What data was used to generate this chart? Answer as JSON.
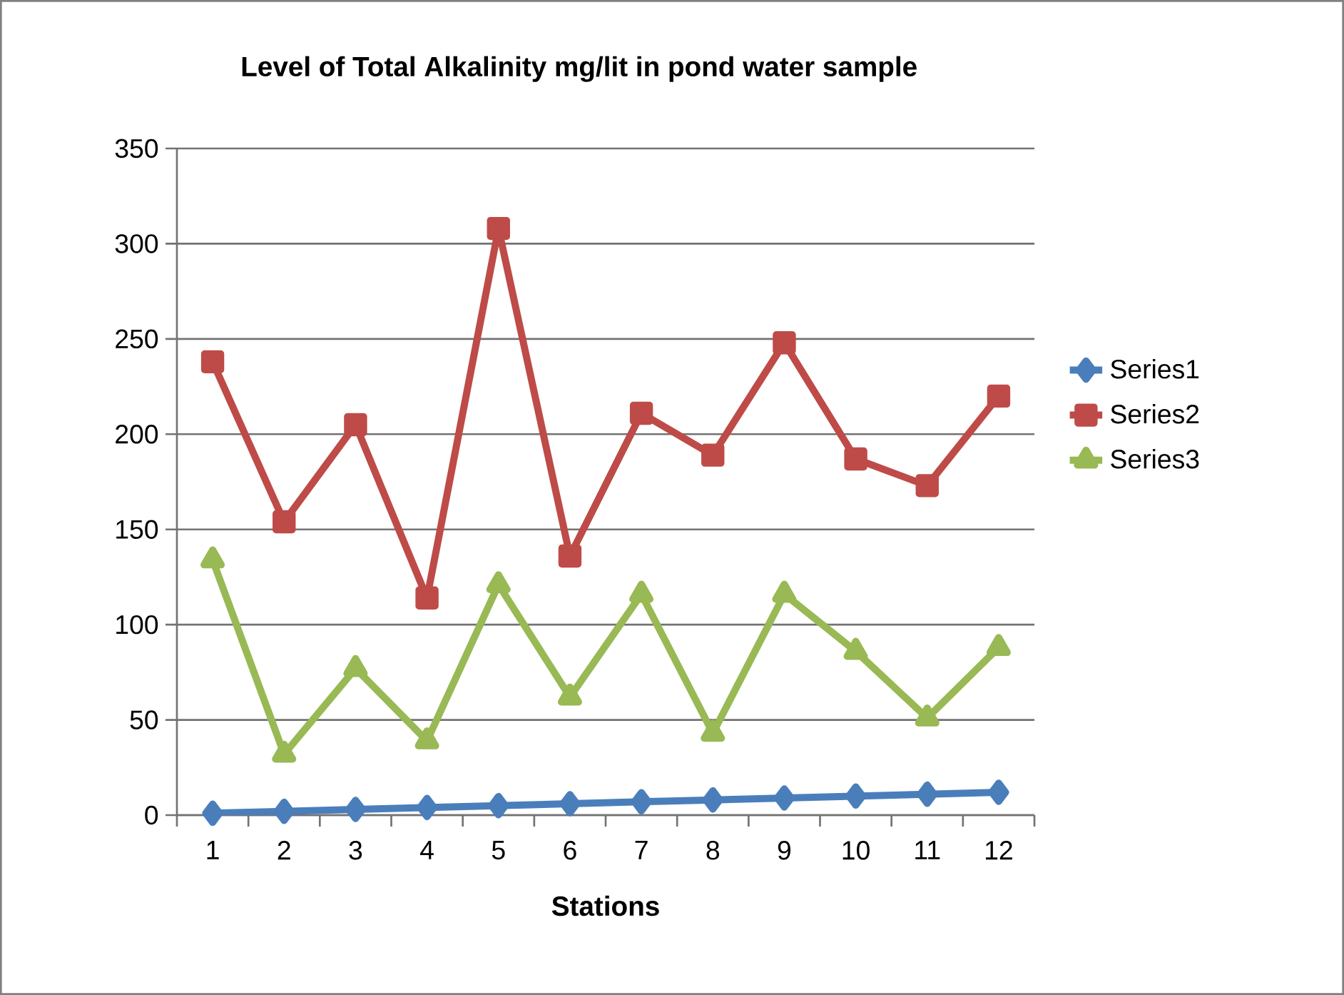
{
  "chart_data": {
    "type": "line",
    "title": "Level of Total Alkalinity mg/lit in pond water sample",
    "xlabel": "Stations",
    "categories": [
      "1",
      "2",
      "3",
      "4",
      "5",
      "6",
      "7",
      "8",
      "9",
      "10",
      "11",
      "12"
    ],
    "series": [
      {
        "name": "Series1",
        "color": "#4a7ebb",
        "marker": "diamond",
        "values": [
          1,
          2,
          3,
          4,
          5,
          6,
          7,
          8,
          9,
          10,
          11,
          12
        ]
      },
      {
        "name": "Series2",
        "color": "#be4b48",
        "marker": "square",
        "values": [
          238,
          154,
          205,
          114,
          308,
          136,
          211,
          189,
          248,
          187,
          173,
          220
        ]
      },
      {
        "name": "Series3",
        "color": "#98b954",
        "marker": "triangle",
        "values": [
          134,
          32,
          77,
          39,
          121,
          62,
          116,
          43,
          116,
          86,
          51,
          88
        ]
      }
    ],
    "ylim": [
      0,
      350
    ],
    "yticks": [
      0,
      50,
      100,
      150,
      200,
      250,
      300,
      350
    ],
    "grid": "y",
    "legend": "right",
    "line_style": "solid"
  }
}
